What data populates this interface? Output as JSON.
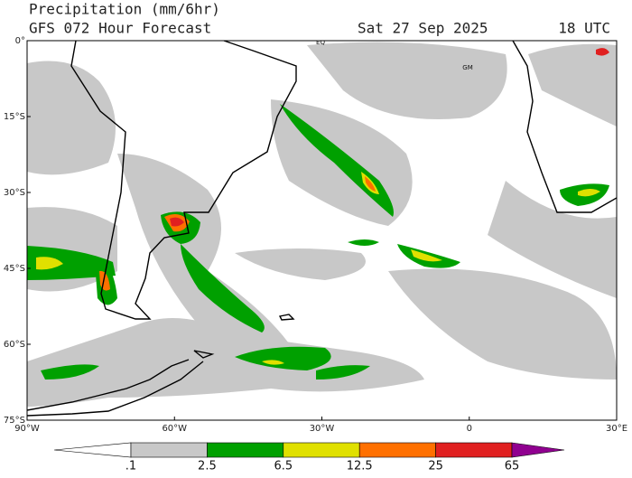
{
  "header": {
    "title": "Precipitation (mm/6hr)",
    "subtitle": "GFS 072 Hour Forecast",
    "date": "Sat 27 Sep 2025",
    "time": "18 UTC"
  },
  "map": {
    "lat_labels": [
      "0°",
      "15°S",
      "30°S",
      "45°S",
      "60°S",
      "75°S"
    ],
    "lon_labels": [
      "90°W",
      "60°W",
      "30°W",
      "0",
      "30°E"
    ],
    "labels": [
      "EQ",
      "GM"
    ]
  },
  "colorbar": {
    "labels": [
      ".1",
      "2.5",
      "6.5",
      "12.5",
      "25",
      "65"
    ],
    "colors": [
      "#ffffff",
      "#c8c8c8",
      "#00a000",
      "#e0e000",
      "#ff7000",
      "#e02020",
      "#900090"
    ]
  }
}
